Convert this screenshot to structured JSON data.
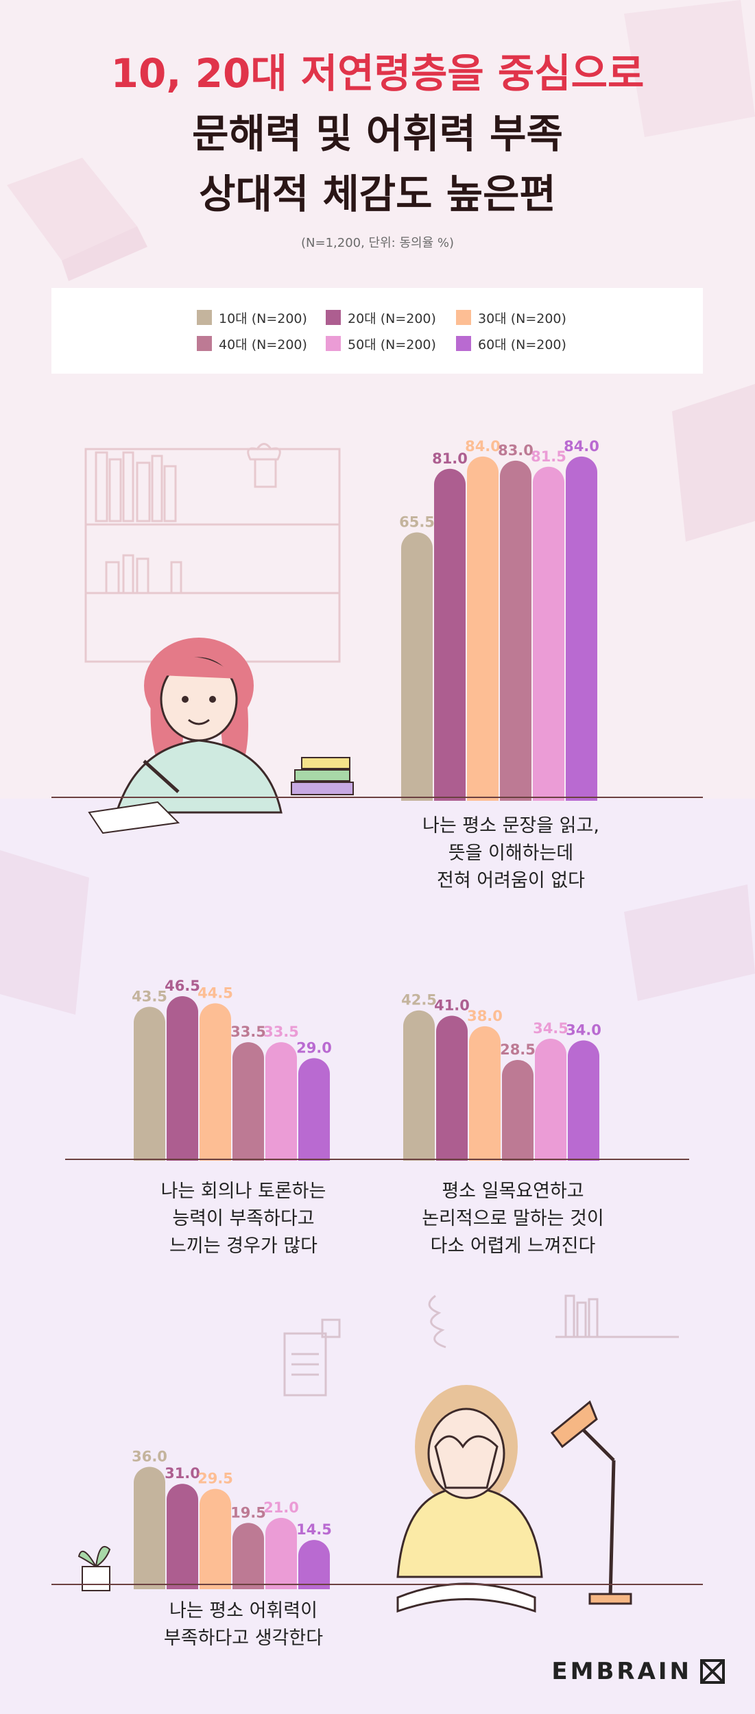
{
  "title": {
    "line1": "10, 20대 저연령층을 중심으로",
    "line2": "문해력 및 어휘력 부족",
    "line3": "상대적 체감도 높은편"
  },
  "subtitle": "(N=1,200, 단위: 동의율 %)",
  "legend": [
    {
      "label": "10대 (N=200)",
      "color": "#c4b49d"
    },
    {
      "label": "20대 (N=200)",
      "color": "#ad5e90"
    },
    {
      "label": "30대 (N=200)",
      "color": "#fdbe94"
    },
    {
      "label": "40대 (N=200)",
      "color": "#bd7a94"
    },
    {
      "label": "50대 (N=200)",
      "color": "#eb9cd6"
    },
    {
      "label": "60대 (N=200)",
      "color": "#b96ad1"
    }
  ],
  "chart_data": [
    {
      "type": "bar",
      "caption": "나는 평소 문장을 읽고,\n뜻을 이해하는데\n전혀 어려움이 없다",
      "categories": [
        "10대 (N=200)",
        "20대 (N=200)",
        "30대 (N=200)",
        "40대 (N=200)",
        "50대 (N=200)",
        "60대 (N=200)"
      ],
      "values": [
        65.5,
        81.0,
        84.0,
        83.0,
        81.5,
        84.0
      ],
      "labels": [
        "65.5",
        "81.0",
        "84.0",
        "83.0",
        "81.5",
        "84.0"
      ],
      "ylim": [
        0,
        100
      ]
    },
    {
      "type": "bar",
      "caption": "나는 회의나 토론하는\n능력이 부족하다고\n느끼는 경우가 많다",
      "categories": [
        "10대 (N=200)",
        "20대 (N=200)",
        "30대 (N=200)",
        "40대 (N=200)",
        "50대 (N=200)",
        "60대 (N=200)"
      ],
      "values": [
        43.5,
        46.5,
        44.5,
        33.5,
        33.5,
        29.0
      ],
      "labels": [
        "43.5",
        "46.5",
        "44.5",
        "33.5",
        "33.5",
        "29.0"
      ],
      "ylim": [
        0,
        100
      ]
    },
    {
      "type": "bar",
      "caption": "평소 일목요연하고\n논리적으로 말하는 것이\n다소 어렵게 느껴진다",
      "categories": [
        "10대 (N=200)",
        "20대 (N=200)",
        "30대 (N=200)",
        "40대 (N=200)",
        "50대 (N=200)",
        "60대 (N=200)"
      ],
      "values": [
        42.5,
        41.0,
        38.0,
        28.5,
        34.5,
        34.0
      ],
      "labels": [
        "42.5",
        "41.0",
        "38.0",
        "28.5",
        "34.5",
        "34.0"
      ],
      "ylim": [
        0,
        100
      ]
    },
    {
      "type": "bar",
      "caption": "나는 평소 어휘력이\n부족하다고 생각한다",
      "categories": [
        "10대 (N=200)",
        "20대 (N=200)",
        "30대 (N=200)",
        "40대 (N=200)",
        "50대 (N=200)",
        "60대 (N=200)"
      ],
      "values": [
        36.0,
        31.0,
        29.5,
        19.5,
        21.0,
        14.5
      ],
      "labels": [
        "36.0",
        "31.0",
        "29.5",
        "19.5",
        "21.0",
        "14.5"
      ],
      "ylim": [
        0,
        100
      ]
    }
  ],
  "brand": {
    "name": "EMBRAIN"
  }
}
